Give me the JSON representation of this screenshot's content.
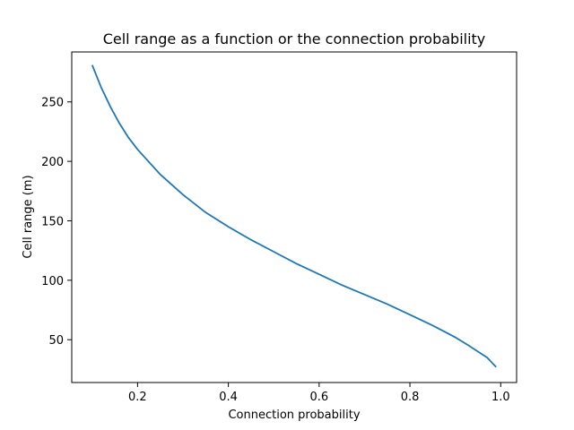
{
  "chart_data": {
    "type": "line",
    "title": "Cell range as a function or the connection probability",
    "xlabel": "Connection probability",
    "ylabel": "Cell range (m)",
    "xlim": [
      0.055,
      1.035
    ],
    "ylim": [
      14,
      292
    ],
    "xticks": [
      0.2,
      0.4,
      0.6,
      0.8,
      1.0
    ],
    "xtick_labels": [
      "0.2",
      "0.4",
      "0.6",
      "0.8",
      "1.0"
    ],
    "yticks": [
      50,
      100,
      150,
      200,
      250
    ],
    "ytick_labels": [
      "50",
      "100",
      "150",
      "200",
      "250"
    ],
    "grid": false,
    "series": [
      {
        "color": "#1f77b4",
        "x": [
          0.1,
          0.12,
          0.14,
          0.16,
          0.18,
          0.2,
          0.25,
          0.3,
          0.35,
          0.4,
          0.45,
          0.5,
          0.55,
          0.6,
          0.65,
          0.7,
          0.75,
          0.8,
          0.85,
          0.9,
          0.93,
          0.95,
          0.97,
          0.98,
          0.99
        ],
        "y": [
          281,
          262,
          246,
          232,
          220,
          210,
          189,
          172,
          157,
          145,
          134,
          124,
          114,
          105,
          96,
          88,
          80,
          71,
          62,
          52,
          45,
          40,
          35,
          31,
          27
        ]
      }
    ]
  }
}
